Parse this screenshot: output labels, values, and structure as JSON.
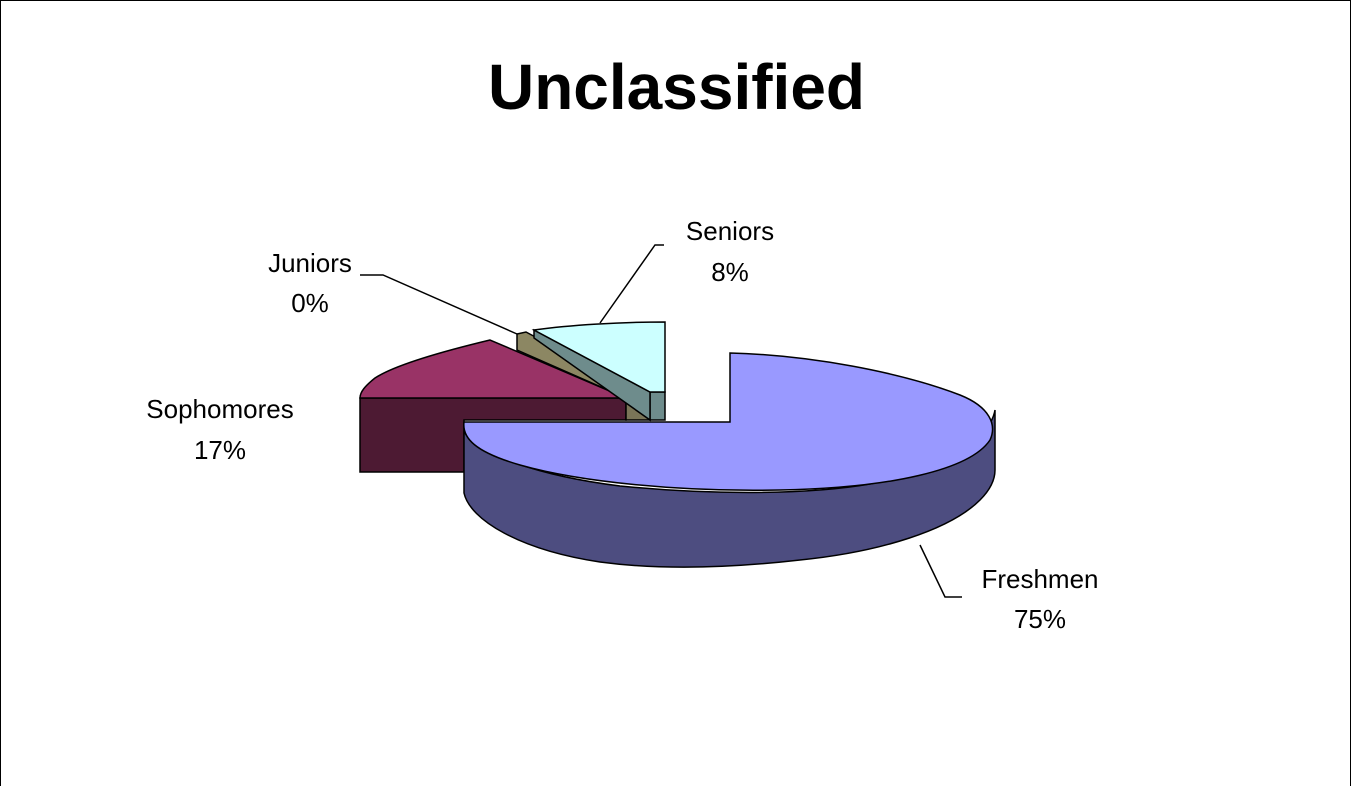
{
  "chart_data": {
    "type": "pie",
    "style": "3d-exploded",
    "title": "Unclassified",
    "slices": [
      {
        "name": "Freshmen",
        "value": 75,
        "label": "75%",
        "color": "#9999ff",
        "side_color": "#4d4d80"
      },
      {
        "name": "Sophomores",
        "value": 17,
        "label": "17%",
        "color": "#993366",
        "side_color": "#4d1a33"
      },
      {
        "name": "Juniors",
        "value": 0,
        "label": "0%",
        "color": "#8c8763",
        "side_color": "#7a7558"
      },
      {
        "name": "Seniors",
        "value": 8,
        "label": "8%",
        "color": "#ccffff",
        "side_color": "#6e8c8c"
      }
    ]
  }
}
